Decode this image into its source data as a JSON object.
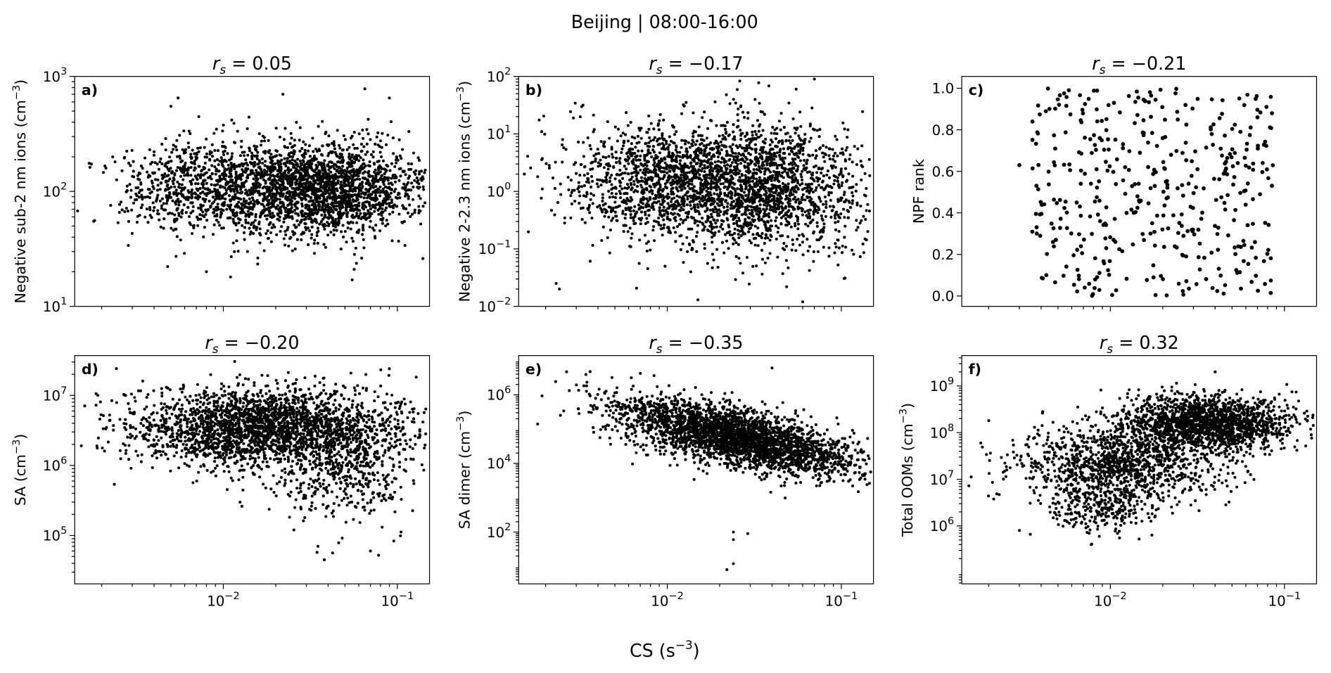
{
  "figure_title": "Beijing | 08:00-16:00",
  "xlabel": {
    "pre": "CS (s",
    "sup": "−3",
    "post": ")"
  },
  "rs_symbol": {
    "r": "r",
    "s": "s",
    "eq": " = "
  },
  "chart_data": [
    {
      "type": "scatter",
      "letter": "a)",
      "rs": "0.05",
      "xscale": "log",
      "yscale": "log",
      "xlim": [
        0.0014,
        0.153
      ],
      "ylim": [
        10,
        1000
      ],
      "ylabel": {
        "pre": "Negative sub-2 nm ions (cm",
        "sup": "−3",
        "post": ")"
      },
      "yticks": [
        {
          "base": "10",
          "exp": "1",
          "v": 10
        },
        {
          "base": "10",
          "exp": "2",
          "v": 100
        },
        {
          "base": "10",
          "exp": "3",
          "v": 1000
        }
      ],
      "clusters": [
        {
          "n": 1900,
          "x_log_mean": -1.4,
          "x_log_sd": 0.27,
          "y_log_mean": 2.02,
          "y_log_sd": 0.2
        },
        {
          "n": 1100,
          "x_log_mean": -2.0,
          "x_log_sd": 0.3,
          "y_log_mean": 2.03,
          "y_log_sd": 0.2
        }
      ],
      "outliers": [
        [
          0.0018,
          55
        ],
        [
          0.005,
          550
        ],
        [
          0.0055,
          650
        ],
        [
          0.04,
          1000
        ],
        [
          0.09,
          650
        ],
        [
          0.022,
          700
        ],
        [
          0.065,
          780
        ],
        [
          0.008,
          20
        ],
        [
          0.011,
          18
        ],
        [
          0.055,
          17
        ]
      ]
    },
    {
      "type": "scatter",
      "letter": "b)",
      "rs": "−0.17",
      "xscale": "log",
      "yscale": "log",
      "xlim": [
        0.0014,
        0.153
      ],
      "ylim": [
        0.01,
        100
      ],
      "ylabel": {
        "pre": "Negative 2-2.3 nm ions (cm",
        "sup": "−3",
        "post": ")"
      },
      "yticks": [
        {
          "base": "10",
          "exp": "−2",
          "v": 0.01
        },
        {
          "base": "10",
          "exp": "−1",
          "v": 0.1
        },
        {
          "base": "10",
          "exp": "0",
          "v": 1
        },
        {
          "base": "10",
          "exp": "1",
          "v": 10
        },
        {
          "base": "10",
          "exp": "2",
          "v": 100
        }
      ],
      "clusters": [
        {
          "n": 1700,
          "x_log_mean": -1.45,
          "x_log_sd": 0.3,
          "y_log_mean": 0.05,
          "y_log_sd": 0.55
        },
        {
          "n": 1200,
          "x_log_mean": -2.0,
          "x_log_sd": 0.3,
          "y_log_mean": 0.2,
          "y_log_sd": 0.5
        }
      ],
      "outliers": [
        [
          0.0018,
          1.8
        ],
        [
          0.0023,
          0.025
        ],
        [
          0.0024,
          0.02
        ],
        [
          0.07,
          90
        ],
        [
          0.055,
          60
        ],
        [
          0.06,
          0.012
        ],
        [
          0.015,
          0.013
        ]
      ]
    },
    {
      "type": "scatter",
      "letter": "c)",
      "rs": "−0.21",
      "xscale": "log",
      "yscale": "linear",
      "xlim": [
        0.0014,
        0.153
      ],
      "ylim": [
        -0.05,
        1.057
      ],
      "ylabel": {
        "pre": "NPF rank",
        "sup": "",
        "post": ""
      },
      "yticks": [
        {
          "base": "0.0",
          "exp": "",
          "v": 0
        },
        {
          "base": "0.2",
          "exp": "",
          "v": 0.2
        },
        {
          "base": "0.4",
          "exp": "",
          "v": 0.4
        },
        {
          "base": "0.6",
          "exp": "",
          "v": 0.6
        },
        {
          "base": "0.8",
          "exp": "",
          "v": 0.8
        },
        {
          "base": "1.0",
          "exp": "",
          "v": 1.0
        }
      ],
      "uniform": {
        "n": 420,
        "x_log_min": -2.45,
        "x_log_max": -1.05,
        "y_min": 0,
        "y_max": 1
      },
      "outliers": [
        [
          0.003,
          0.63
        ],
        [
          0.07,
          0.86
        ]
      ]
    },
    {
      "type": "scatter",
      "letter": "d)",
      "rs": "−0.20",
      "xscale": "log",
      "yscale": "log",
      "xlim": [
        0.0014,
        0.153
      ],
      "ylim": [
        20400,
        37000000
      ],
      "ylabel": {
        "pre": "SA (cm",
        "sup": "−3",
        "post": ")"
      },
      "yticks": [
        {
          "base": "10",
          "exp": "5",
          "v": 100000
        },
        {
          "base": "10",
          "exp": "6",
          "v": 1000000
        },
        {
          "base": "10",
          "exp": "7",
          "v": 10000000
        }
      ],
      "clusters": [
        {
          "n": 2600,
          "x_log_mean": -1.75,
          "x_log_sd": 0.38,
          "y_log_mean": 6.55,
          "y_log_sd": 0.28
        },
        {
          "n": 450,
          "x_log_mean": -1.3,
          "x_log_sd": 0.2,
          "y_log_mean": 5.9,
          "y_log_sd": 0.35
        }
      ],
      "outliers": [
        [
          0.0019,
          10000000
        ],
        [
          0.035,
          70000
        ],
        [
          0.038,
          45000
        ],
        [
          0.07,
          60000
        ],
        [
          0.09,
          24000000
        ]
      ]
    },
    {
      "type": "scatter",
      "letter": "e)",
      "rs": "−0.35",
      "xscale": "log",
      "yscale": "log",
      "xlim": [
        0.0014,
        0.153
      ],
      "ylim": [
        3.1,
        13800000
      ],
      "ylabel": {
        "pre": "SA dimer (cm",
        "sup": "−3",
        "post": ")"
      },
      "yticks": [
        {
          "base": "10",
          "exp": "2",
          "v": 100
        },
        {
          "base": "10",
          "exp": "4",
          "v": 10000
        },
        {
          "base": "10",
          "exp": "6",
          "v": 1000000
        }
      ],
      "trend": {
        "n": 3000,
        "x_log_mean": -1.6,
        "x_log_sd": 0.35,
        "slope": -1.1,
        "intercept": 3.0,
        "y_log_sd": 0.42
      },
      "outliers": [
        [
          0.04,
          6000000
        ],
        [
          0.024,
          100
        ],
        [
          0.024,
          60
        ],
        [
          0.022,
          8
        ],
        [
          0.024,
          12
        ],
        [
          0.029,
          90
        ],
        [
          0.0018,
          140000
        ]
      ]
    },
    {
      "type": "scatter",
      "letter": "f)",
      "rs": "0.32",
      "xscale": "log",
      "yscale": "log",
      "xlim": [
        0.0014,
        0.153
      ],
      "ylim": [
        57500,
        4470000000
      ],
      "ylabel": {
        "pre": "Total OOMs (cm",
        "sup": "−3",
        "post": ")"
      },
      "yticks": [
        {
          "base": "10",
          "exp": "6",
          "v": 1000000
        },
        {
          "base": "10",
          "exp": "7",
          "v": 10000000
        },
        {
          "base": "10",
          "exp": "8",
          "v": 100000000
        },
        {
          "base": "10",
          "exp": "9",
          "v": 1000000000
        }
      ],
      "clusters": [
        {
          "n": 1800,
          "x_log_mean": -1.45,
          "x_log_sd": 0.25,
          "y_log_mean": 8.2,
          "y_log_sd": 0.28
        },
        {
          "n": 1200,
          "x_log_mean": -1.95,
          "x_log_sd": 0.3,
          "y_log_mean": 7.3,
          "y_log_sd": 0.4
        },
        {
          "n": 250,
          "x_log_mean": -2.05,
          "x_log_sd": 0.15,
          "y_log_mean": 6.4,
          "y_log_sd": 0.25
        }
      ],
      "outliers": [
        [
          0.04,
          2000000000
        ],
        [
          0.0018,
          60000000
        ],
        [
          0.002,
          180000000
        ],
        [
          0.003,
          800000
        ]
      ]
    }
  ],
  "xticks": [
    {
      "base": "10",
      "exp": "−2",
      "v": 0.01
    },
    {
      "base": "10",
      "exp": "−1",
      "v": 0.1
    }
  ]
}
